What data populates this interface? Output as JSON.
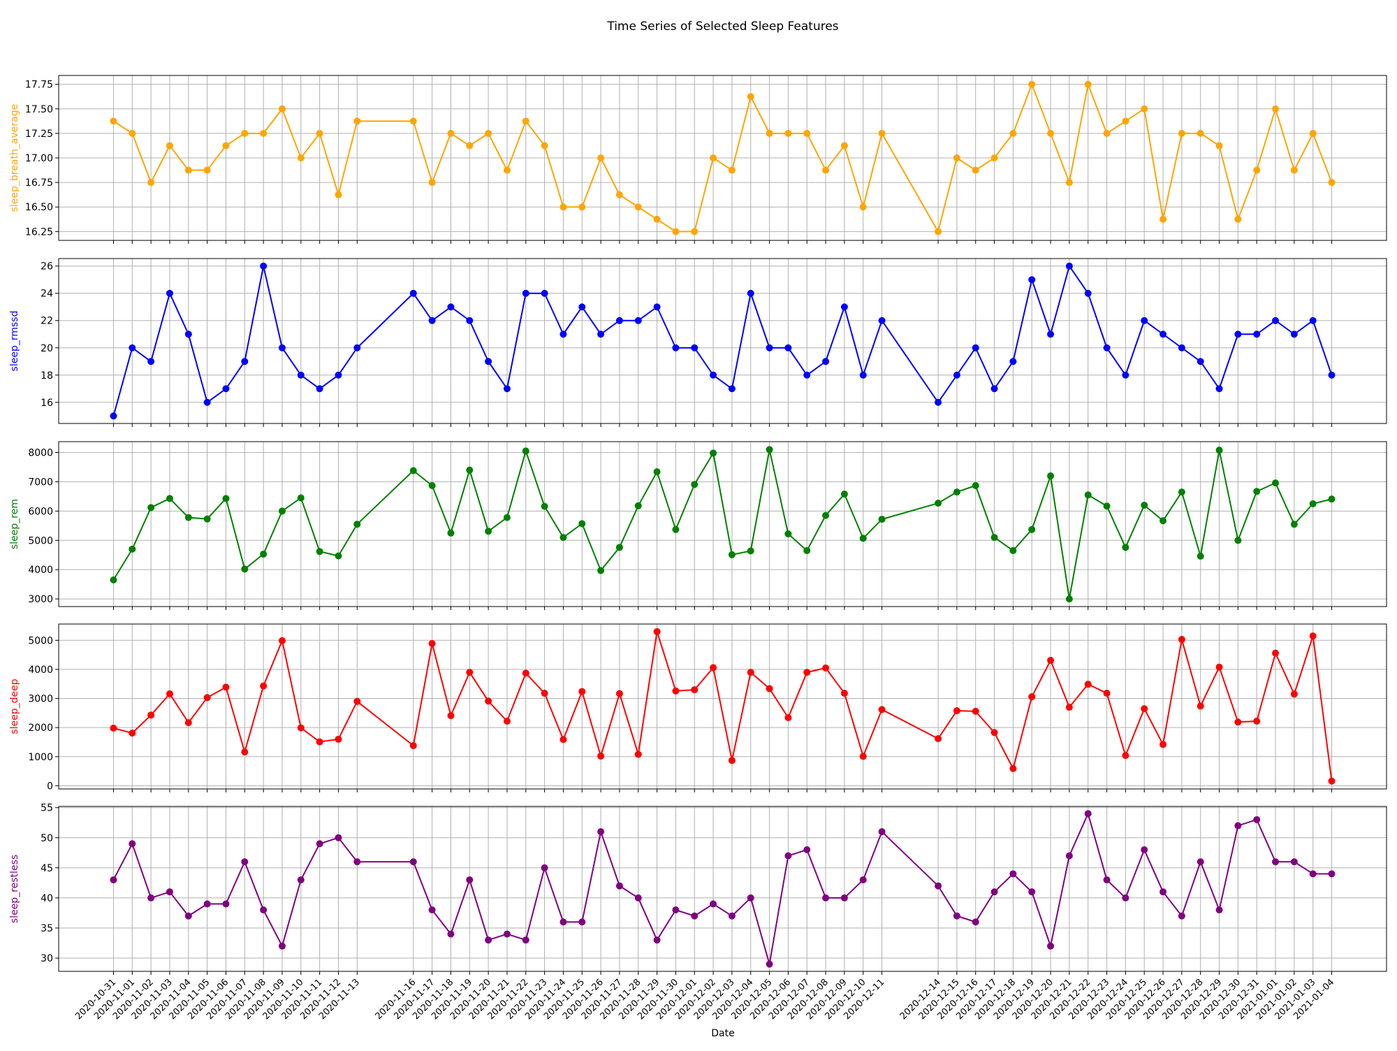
{
  "chart_data": {
    "type": "line",
    "title": "Time Series of Selected Sleep Features",
    "xlabel": "Date",
    "grid": true,
    "dates": [
      "2020-10-31",
      "2020-11-01",
      "2020-11-02",
      "2020-11-03",
      "2020-11-04",
      "2020-11-05",
      "2020-11-06",
      "2020-11-07",
      "2020-11-08",
      "2020-11-09",
      "2020-11-10",
      "2020-11-11",
      "2020-11-12",
      "2020-11-13",
      "2020-11-16",
      "2020-11-17",
      "2020-11-18",
      "2020-11-19",
      "2020-11-20",
      "2020-11-21",
      "2020-11-22",
      "2020-11-23",
      "2020-11-24",
      "2020-11-25",
      "2020-11-26",
      "2020-11-27",
      "2020-11-28",
      "2020-11-29",
      "2020-11-30",
      "2020-12-01",
      "2020-12-02",
      "2020-12-03",
      "2020-12-04",
      "2020-12-05",
      "2020-12-06",
      "2020-12-07",
      "2020-12-08",
      "2020-12-09",
      "2020-12-10",
      "2020-12-11",
      "2020-12-14",
      "2020-12-15",
      "2020-12-16",
      "2020-12-17",
      "2020-12-18",
      "2020-12-19",
      "2020-12-20",
      "2020-12-21",
      "2020-12-22",
      "2020-12-23",
      "2020-12-24",
      "2020-12-25",
      "2020-12-26",
      "2020-12-27",
      "2020-12-28",
      "2020-12-29",
      "2020-12-30",
      "2020-12-31",
      "2021-01-01",
      "2021-01-02",
      "2021-01-03",
      "2021-01-04"
    ],
    "panels": [
      {
        "ylabel": "sleep_breath_average",
        "color": "#ffa500",
        "ylim": [
          16.16,
          17.84
        ],
        "yticks": [
          16.25,
          16.5,
          16.75,
          17.0,
          17.25,
          17.5,
          17.75
        ],
        "ytick_labels": [
          "16.25",
          "16.50",
          "16.75",
          "17.00",
          "17.25",
          "17.50",
          "17.75"
        ],
        "values": [
          17.375,
          17.25,
          16.75,
          17.125,
          16.875,
          16.875,
          17.125,
          17.25,
          17.25,
          17.5,
          17.0,
          17.25,
          16.625,
          17.375,
          17.375,
          16.75,
          17.25,
          17.125,
          17.25,
          16.875,
          17.375,
          17.125,
          16.5,
          16.5,
          17.0,
          16.625,
          16.5,
          16.375,
          16.25,
          16.25,
          17.0,
          16.875,
          17.625,
          17.25,
          17.25,
          17.25,
          16.875,
          17.125,
          16.5,
          17.25,
          16.25,
          17.0,
          16.875,
          17.0,
          17.25,
          17.75,
          17.25,
          16.75,
          17.75,
          17.25,
          17.375,
          17.5,
          16.375,
          17.25,
          17.25,
          17.125,
          16.375,
          16.875,
          17.5,
          16.875,
          17.25,
          16.75
        ]
      },
      {
        "ylabel": "sleep_rmssd",
        "color": "#0000ff",
        "ylim": [
          14.45,
          26.55
        ],
        "yticks": [
          16,
          18,
          20,
          22,
          24,
          26
        ],
        "ytick_labels": [
          "16",
          "18",
          "20",
          "22",
          "24",
          "26"
        ],
        "values": [
          15,
          20,
          19,
          24,
          21,
          16,
          17,
          19,
          26,
          20,
          18,
          17,
          18,
          20,
          24,
          22,
          23,
          22,
          19,
          17,
          24,
          24,
          21,
          23,
          21,
          22,
          22,
          23,
          20,
          20,
          18,
          17,
          24,
          20,
          20,
          18,
          19,
          23,
          18,
          22,
          16,
          18,
          20,
          17,
          19,
          25,
          21,
          26,
          24,
          20,
          18,
          22,
          21,
          20,
          19,
          17,
          21,
          21,
          22,
          21,
          22,
          18
        ]
      },
      {
        "ylabel": "sleep_rem",
        "color": "#008000",
        "ylim": [
          2740,
          8370
        ],
        "yticks": [
          3000,
          4000,
          5000,
          6000,
          7000,
          8000
        ],
        "ytick_labels": [
          "3000",
          "4000",
          "5000",
          "6000",
          "7000",
          "8000"
        ],
        "values": [
          3650,
          4700,
          6120,
          6430,
          5780,
          5730,
          6430,
          4020,
          4530,
          6000,
          6450,
          4620,
          4470,
          5550,
          7380,
          6870,
          5250,
          7400,
          5310,
          5780,
          8050,
          6160,
          5100,
          5570,
          3970,
          4760,
          6180,
          7340,
          5370,
          6910,
          7980,
          4510,
          4640,
          8100,
          5220,
          4650,
          5850,
          6580,
          5070,
          5720,
          6270,
          6650,
          6870,
          5100,
          4650,
          5370,
          7200,
          3000,
          6550,
          6170,
          4760,
          6200,
          5670,
          6650,
          4460,
          8080,
          5000,
          6670,
          6960,
          5550,
          6250,
          6410
        ]
      },
      {
        "ylabel": "sleep_deep",
        "color": "#ff0000",
        "ylim": [
          -110,
          5560
        ],
        "yticks": [
          0,
          1000,
          2000,
          3000,
          4000,
          5000
        ],
        "ytick_labels": [
          "0",
          "1000",
          "2000",
          "3000",
          "4000",
          "5000"
        ],
        "values": [
          1980,
          1810,
          2430,
          3160,
          2170,
          3030,
          3390,
          1160,
          3430,
          4990,
          1990,
          1510,
          1600,
          2900,
          1380,
          4890,
          2410,
          3900,
          2910,
          2220,
          3870,
          3180,
          1590,
          3240,
          1020,
          3170,
          1080,
          5300,
          3260,
          3300,
          4060,
          870,
          3900,
          3340,
          2340,
          3900,
          4050,
          3180,
          1010,
          2620,
          1620,
          2580,
          2560,
          1830,
          590,
          3060,
          4310,
          2700,
          3490,
          3180,
          1040,
          2650,
          1420,
          5030,
          2740,
          4080,
          2190,
          2220,
          4560,
          3150,
          5150,
          160
        ]
      },
      {
        "ylabel": "sleep_restless",
        "color": "#800080",
        "ylim": [
          27.8,
          55.2
        ],
        "yticks": [
          30,
          35,
          40,
          45,
          50,
          55
        ],
        "ytick_labels": [
          "30",
          "35",
          "40",
          "45",
          "50",
          "55"
        ],
        "values": [
          43,
          49,
          40,
          41,
          37,
          39,
          39,
          46,
          38,
          32,
          43,
          49,
          50,
          46,
          46,
          38,
          34,
          43,
          33,
          34,
          33,
          45,
          36,
          36,
          51,
          42,
          40,
          33,
          38,
          37,
          39,
          37,
          40,
          29,
          47,
          48,
          40,
          40,
          43,
          51,
          42,
          37,
          36,
          41,
          44,
          41,
          32,
          47,
          54,
          43,
          40,
          48,
          41,
          37,
          46,
          38,
          52,
          53,
          46,
          46,
          44,
          44
        ]
      }
    ]
  }
}
